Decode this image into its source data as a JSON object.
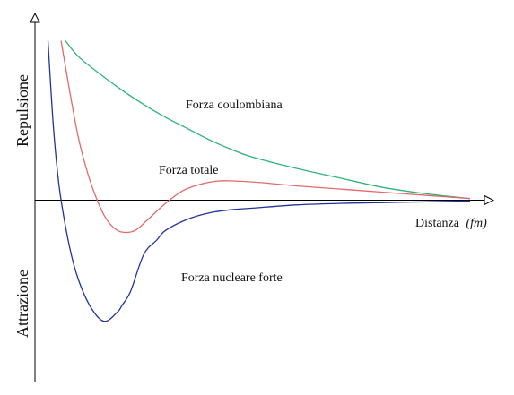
{
  "chart_data": {
    "type": "line",
    "xlabel": "Distanza",
    "xlabel_unit": "(fm)",
    "ylabel_top": "Repulsione",
    "ylabel_bottom": "Attrazione",
    "grid": false,
    "legend": "none",
    "x_units": "arbitrary (0 = origin, 1 = end of curves)",
    "y_units": "arbitrary (positive = repulsion, negative = attraction)",
    "series": [
      {
        "name": "Forza coulombiana",
        "color": "#2db37a",
        "x": [
          0.07,
          0.1,
          0.15,
          0.2,
          0.25,
          0.3,
          0.35,
          0.4,
          0.45,
          0.5,
          0.6,
          0.7,
          0.8,
          0.9,
          1.0
        ],
        "y": [
          1.0,
          0.9,
          0.79,
          0.69,
          0.6,
          0.52,
          0.45,
          0.38,
          0.32,
          0.27,
          0.2,
          0.14,
          0.08,
          0.04,
          0.01
        ]
      },
      {
        "name": "Forza totale",
        "color": "#e06a6a",
        "x": [
          0.06,
          0.08,
          0.1,
          0.12,
          0.14,
          0.16,
          0.18,
          0.2,
          0.23,
          0.26,
          0.3,
          0.34,
          0.38,
          0.42,
          0.46,
          0.52,
          0.6,
          0.7,
          0.8,
          0.9,
          1.0
        ],
        "y": [
          1.0,
          0.68,
          0.39,
          0.18,
          0.02,
          -0.1,
          -0.17,
          -0.2,
          -0.19,
          -0.12,
          -0.02,
          0.06,
          0.1,
          0.12,
          0.12,
          0.11,
          0.09,
          0.07,
          0.05,
          0.03,
          0.01
        ]
      },
      {
        "name": "Forza nucleare forte",
        "color": "#22339a",
        "x": [
          0.03,
          0.04,
          0.05,
          0.06,
          0.08,
          0.1,
          0.13,
          0.16,
          0.19,
          0.2,
          0.22,
          0.25,
          0.28,
          0.3,
          0.35,
          0.4,
          0.45,
          0.5,
          0.6,
          0.7,
          0.8,
          0.9,
          1.0
        ],
        "y": [
          1.0,
          0.55,
          0.22,
          0.0,
          -0.3,
          -0.5,
          -0.68,
          -0.76,
          -0.7,
          -0.66,
          -0.57,
          -0.34,
          -0.25,
          -0.19,
          -0.12,
          -0.08,
          -0.06,
          -0.05,
          -0.03,
          -0.02,
          -0.015,
          -0.01,
          -0.005
        ]
      }
    ]
  }
}
